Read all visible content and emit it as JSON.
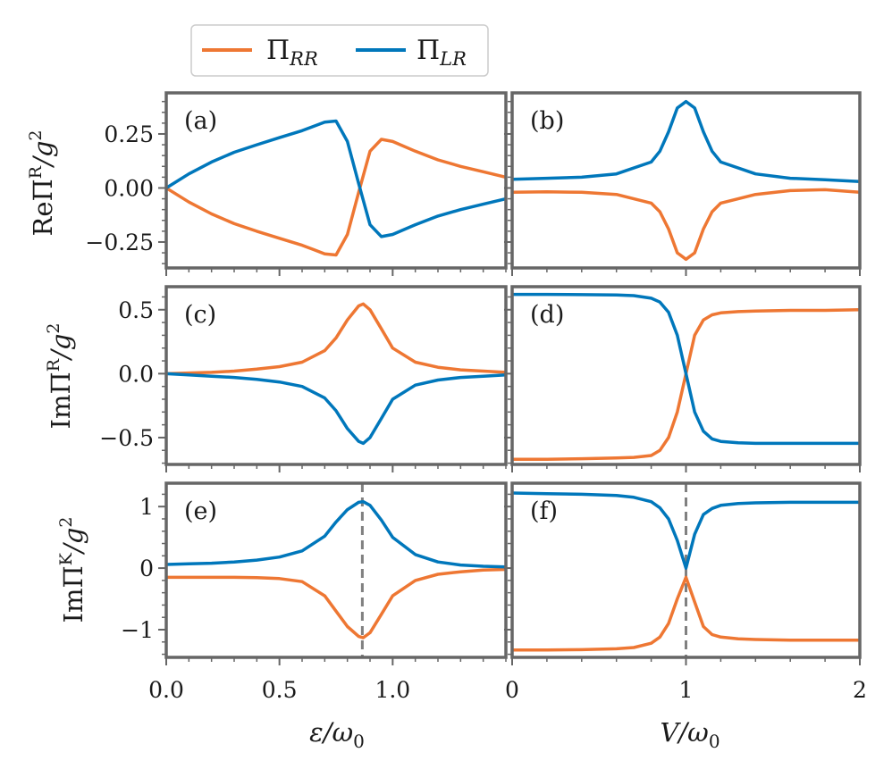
{
  "legend": {
    "location": "top-left, above panels",
    "entries": [
      {
        "key": "rr",
        "name": "Π",
        "sub": "RR",
        "color": "#ee7733"
      },
      {
        "key": "lr",
        "name": "Π",
        "sub": "LR",
        "color": "#0077bb"
      }
    ]
  },
  "colors": {
    "frame": "#666666",
    "dashed": "#808080",
    "text": "#1a1a1a"
  },
  "axes": {
    "left_x": {
      "range": [
        0.0,
        1.5
      ],
      "ticks": [
        0.0,
        0.5,
        1.0
      ],
      "tick_labels": [
        "0.0",
        "0.5",
        "1.0"
      ],
      "label_main": "ε/ω",
      "label_sub": "0"
    },
    "right_x": {
      "range": [
        0,
        2
      ],
      "ticks": [
        0,
        1,
        2
      ],
      "tick_labels": [
        "0",
        "1",
        "2"
      ],
      "label_main": "V/ω",
      "label_sub": "0"
    }
  },
  "rows": [
    {
      "ylabel_main": "ReΠ",
      "ylabel_sup": "R",
      "ylabel_tail": "/g",
      "ylabel_pow": "2",
      "yrange": [
        -0.37,
        0.44
      ],
      "yticks": [
        0.25,
        0.0,
        -0.25
      ],
      "ytick_labels": [
        "0.25",
        "0.00",
        "−0.25"
      ]
    },
    {
      "ylabel_main": "ImΠ",
      "ylabel_sup": "R",
      "ylabel_tail": "/g",
      "ylabel_pow": "2",
      "yrange": [
        -0.71,
        0.68
      ],
      "yticks": [
        0.5,
        0.0,
        -0.5
      ],
      "ytick_labels": [
        "0.5",
        "0.0",
        "−0.5"
      ]
    },
    {
      "ylabel_main": "ImΠ",
      "ylabel_sup": "K",
      "ylabel_tail": "/g",
      "ylabel_pow": "2",
      "yrange": [
        -1.45,
        1.38
      ],
      "yticks": [
        1,
        0,
        -1
      ],
      "ytick_labels": [
        "1",
        "0",
        "−1"
      ]
    }
  ],
  "chart_data": [
    {
      "type": "line",
      "panel_label": "(a)",
      "row": 0,
      "col": 0,
      "x": [
        0.0,
        0.1,
        0.2,
        0.3,
        0.4,
        0.5,
        0.6,
        0.65,
        0.7,
        0.75,
        0.8,
        0.85,
        0.9,
        0.95,
        1.0,
        1.1,
        1.2,
        1.3,
        1.4,
        1.5
      ],
      "series": [
        {
          "name": "RR",
          "values": [
            0.0,
            -0.065,
            -0.12,
            -0.165,
            -0.2,
            -0.233,
            -0.265,
            -0.285,
            -0.305,
            -0.31,
            -0.215,
            -0.02,
            0.17,
            0.225,
            0.215,
            0.17,
            0.13,
            0.1,
            0.075,
            0.05
          ]
        },
        {
          "name": "LR",
          "values": [
            0.0,
            0.065,
            0.12,
            0.165,
            0.2,
            0.233,
            0.265,
            0.285,
            0.305,
            0.31,
            0.215,
            0.02,
            -0.17,
            -0.225,
            -0.215,
            -0.17,
            -0.13,
            -0.1,
            -0.075,
            -0.05
          ]
        }
      ]
    },
    {
      "type": "line",
      "panel_label": "(b)",
      "row": 0,
      "col": 1,
      "x": [
        0.0,
        0.2,
        0.4,
        0.6,
        0.8,
        0.85,
        0.9,
        0.95,
        1.0,
        1.05,
        1.1,
        1.15,
        1.2,
        1.4,
        1.6,
        1.8,
        2.0
      ],
      "series": [
        {
          "name": "RR",
          "values": [
            -0.02,
            -0.018,
            -0.02,
            -0.03,
            -0.07,
            -0.11,
            -0.19,
            -0.3,
            -0.33,
            -0.3,
            -0.19,
            -0.11,
            -0.07,
            -0.03,
            -0.012,
            -0.008,
            -0.02
          ]
        },
        {
          "name": "LR",
          "values": [
            0.04,
            0.045,
            0.05,
            0.065,
            0.12,
            0.17,
            0.26,
            0.37,
            0.4,
            0.37,
            0.26,
            0.17,
            0.12,
            0.065,
            0.045,
            0.038,
            0.03
          ]
        }
      ]
    },
    {
      "type": "line",
      "panel_label": "(c)",
      "row": 1,
      "col": 0,
      "x": [
        0.0,
        0.1,
        0.2,
        0.3,
        0.4,
        0.5,
        0.6,
        0.7,
        0.75,
        0.8,
        0.85,
        0.87,
        0.9,
        0.95,
        1.0,
        1.1,
        1.2,
        1.3,
        1.4,
        1.5
      ],
      "series": [
        {
          "name": "RR",
          "values": [
            0.0,
            0.005,
            0.01,
            0.02,
            0.035,
            0.055,
            0.09,
            0.18,
            0.28,
            0.42,
            0.53,
            0.545,
            0.5,
            0.35,
            0.2,
            0.09,
            0.05,
            0.03,
            0.02,
            0.01
          ]
        },
        {
          "name": "LR",
          "values": [
            0.0,
            -0.01,
            -0.02,
            -0.03,
            -0.045,
            -0.065,
            -0.1,
            -0.19,
            -0.29,
            -0.43,
            -0.53,
            -0.545,
            -0.5,
            -0.35,
            -0.2,
            -0.09,
            -0.05,
            -0.03,
            -0.02,
            -0.01
          ]
        }
      ]
    },
    {
      "type": "line",
      "panel_label": "(d)",
      "row": 1,
      "col": 1,
      "x": [
        0.0,
        0.2,
        0.4,
        0.6,
        0.7,
        0.8,
        0.85,
        0.9,
        0.95,
        1.0,
        1.05,
        1.1,
        1.15,
        1.2,
        1.3,
        1.4,
        1.6,
        1.8,
        2.0
      ],
      "series": [
        {
          "name": "RR",
          "values": [
            -0.67,
            -0.67,
            -0.665,
            -0.66,
            -0.655,
            -0.64,
            -0.6,
            -0.5,
            -0.3,
            0.0,
            0.3,
            0.42,
            0.46,
            0.475,
            0.485,
            0.49,
            0.495,
            0.495,
            0.5
          ]
        },
        {
          "name": "LR",
          "values": [
            0.62,
            0.62,
            0.618,
            0.615,
            0.61,
            0.59,
            0.56,
            0.48,
            0.3,
            0.0,
            -0.3,
            -0.45,
            -0.51,
            -0.53,
            -0.54,
            -0.545,
            -0.545,
            -0.545,
            -0.545
          ]
        }
      ]
    },
    {
      "type": "line",
      "panel_label": "(e)",
      "row": 2,
      "col": 0,
      "vline_x": 0.866,
      "x": [
        0.0,
        0.1,
        0.2,
        0.3,
        0.4,
        0.5,
        0.6,
        0.7,
        0.75,
        0.8,
        0.85,
        0.87,
        0.9,
        0.95,
        1.0,
        1.1,
        1.2,
        1.3,
        1.4,
        1.5
      ],
      "series": [
        {
          "name": "RR",
          "values": [
            -0.15,
            -0.15,
            -0.15,
            -0.15,
            -0.155,
            -0.17,
            -0.22,
            -0.45,
            -0.7,
            -0.95,
            -1.11,
            -1.13,
            -1.05,
            -0.75,
            -0.45,
            -0.2,
            -0.1,
            -0.06,
            -0.03,
            -0.02
          ]
        },
        {
          "name": "LR",
          "values": [
            0.06,
            0.07,
            0.08,
            0.1,
            0.13,
            0.18,
            0.28,
            0.52,
            0.75,
            0.95,
            1.07,
            1.08,
            1.02,
            0.78,
            0.5,
            0.22,
            0.1,
            0.05,
            0.03,
            0.02
          ]
        }
      ]
    },
    {
      "type": "line",
      "panel_label": "(f)",
      "row": 2,
      "col": 1,
      "vline_x": 1.0,
      "x": [
        0.0,
        0.2,
        0.4,
        0.6,
        0.7,
        0.8,
        0.85,
        0.9,
        0.95,
        1.0,
        1.05,
        1.1,
        1.15,
        1.2,
        1.3,
        1.4,
        1.6,
        1.8,
        2.0
      ],
      "series": [
        {
          "name": "RR",
          "values": [
            -1.33,
            -1.33,
            -1.325,
            -1.31,
            -1.29,
            -1.22,
            -1.12,
            -0.9,
            -0.5,
            -0.15,
            -0.55,
            -0.95,
            -1.08,
            -1.12,
            -1.15,
            -1.16,
            -1.17,
            -1.17,
            -1.17
          ]
        },
        {
          "name": "LR",
          "values": [
            1.22,
            1.21,
            1.2,
            1.18,
            1.15,
            1.08,
            0.98,
            0.8,
            0.45,
            0.0,
            0.55,
            0.87,
            0.97,
            1.02,
            1.05,
            1.06,
            1.07,
            1.07,
            1.07
          ]
        }
      ]
    }
  ]
}
